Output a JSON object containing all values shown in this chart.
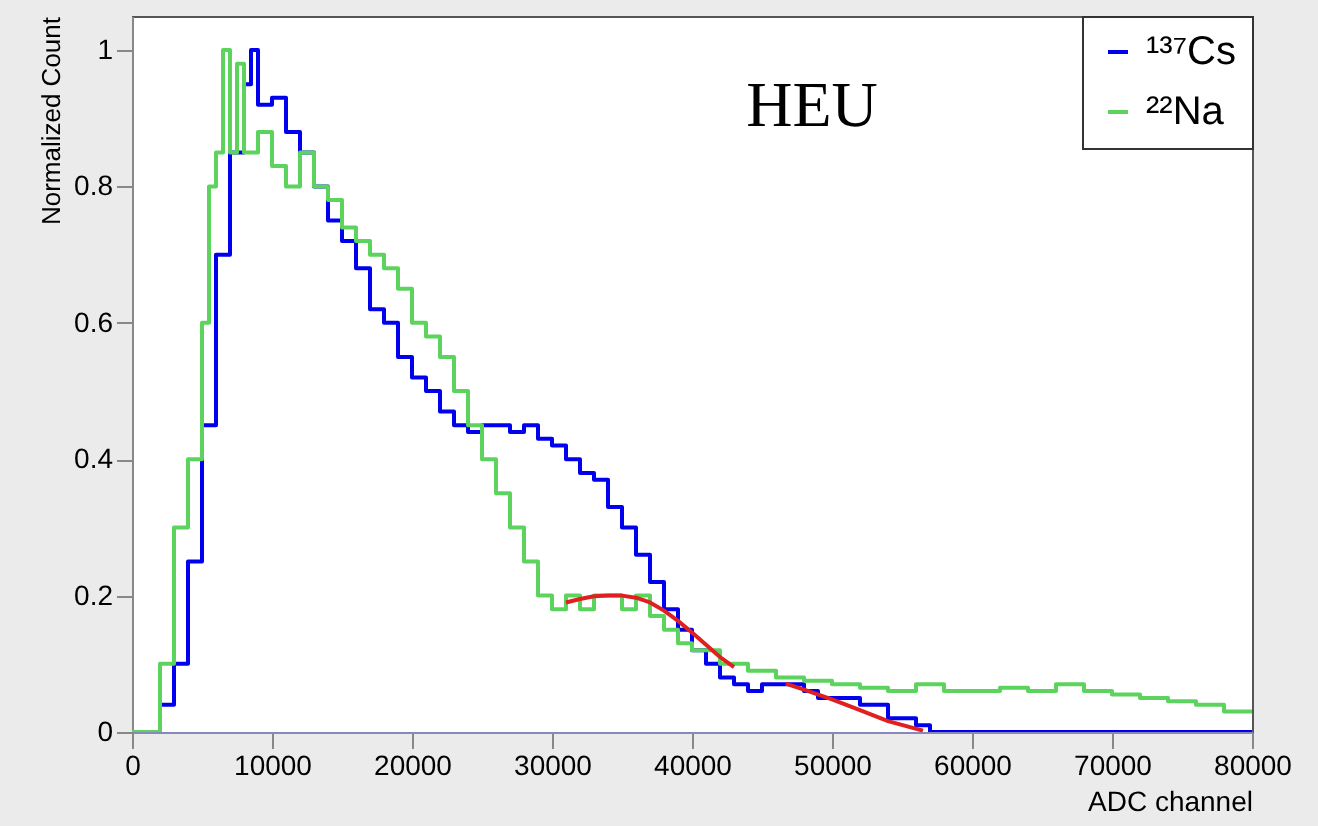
{
  "chart_data": {
    "type": "line",
    "xlabel": "ADC channel",
    "ylabel": "Normalized Count",
    "annotations": [
      "HEU"
    ],
    "xlim": [
      0,
      80000
    ],
    "ylim": [
      0,
      1.05
    ],
    "xticks": [
      0,
      10000,
      20000,
      30000,
      40000,
      50000,
      60000,
      70000,
      80000
    ],
    "yticks": [
      0,
      0.2,
      0.4,
      0.6,
      0.8,
      1
    ],
    "grid": false,
    "legend": "top right",
    "series": [
      {
        "name": "¹³⁷Cs",
        "type": "step",
        "color": "#0000ee",
        "x": [
          0,
          1000,
          2000,
          3000,
          4000,
          5000,
          6000,
          7000,
          8000,
          8500,
          9000,
          10000,
          11000,
          12000,
          13000,
          14000,
          15000,
          16000,
          17000,
          18000,
          19000,
          20000,
          21000,
          22000,
          23000,
          24000,
          25000,
          26000,
          27000,
          28000,
          29000,
          30000,
          31000,
          32000,
          33000,
          34000,
          35000,
          36000,
          37000,
          38000,
          39000,
          40000,
          41000,
          42000,
          43000,
          44000,
          45000,
          46000,
          47000,
          48000,
          49000,
          50000,
          52000,
          54000,
          56000,
          57000,
          60000,
          70000,
          80000
        ],
        "values": [
          0,
          0,
          0.04,
          0.1,
          0.25,
          0.45,
          0.7,
          0.85,
          0.95,
          1.0,
          0.92,
          0.93,
          0.88,
          0.85,
          0.8,
          0.75,
          0.72,
          0.68,
          0.62,
          0.6,
          0.55,
          0.52,
          0.5,
          0.47,
          0.45,
          0.44,
          0.45,
          0.45,
          0.44,
          0.45,
          0.43,
          0.42,
          0.4,
          0.38,
          0.37,
          0.33,
          0.3,
          0.26,
          0.22,
          0.18,
          0.15,
          0.12,
          0.1,
          0.08,
          0.07,
          0.06,
          0.07,
          0.07,
          0.07,
          0.06,
          0.05,
          0.05,
          0.04,
          0.02,
          0.01,
          0,
          0,
          0,
          0
        ]
      },
      {
        "name": "²²Na",
        "type": "step",
        "color": "#5cd35c",
        "x": [
          0,
          500,
          2000,
          3000,
          4000,
          5000,
          5500,
          6000,
          6500,
          7000,
          7500,
          8000,
          9000,
          10000,
          11000,
          12000,
          13000,
          14000,
          15000,
          16000,
          17000,
          18000,
          19000,
          20000,
          21000,
          22000,
          23000,
          24000,
          25000,
          26000,
          27000,
          28000,
          29000,
          30000,
          31000,
          32000,
          33000,
          34000,
          35000,
          36000,
          37000,
          38000,
          39000,
          40000,
          42000,
          44000,
          46000,
          48000,
          50000,
          52000,
          54000,
          56000,
          58000,
          60000,
          62000,
          64000,
          66000,
          68000,
          70000,
          72000,
          74000,
          76000,
          78000,
          80000
        ],
        "values": [
          0,
          0,
          0.1,
          0.3,
          0.4,
          0.6,
          0.8,
          0.85,
          1.0,
          0.85,
          0.98,
          0.85,
          0.88,
          0.83,
          0.8,
          0.85,
          0.8,
          0.78,
          0.74,
          0.72,
          0.7,
          0.68,
          0.65,
          0.6,
          0.58,
          0.55,
          0.5,
          0.45,
          0.4,
          0.35,
          0.3,
          0.25,
          0.2,
          0.18,
          0.2,
          0.18,
          0.2,
          0.2,
          0.18,
          0.2,
          0.17,
          0.15,
          0.13,
          0.12,
          0.1,
          0.09,
          0.08,
          0.075,
          0.07,
          0.065,
          0.06,
          0.07,
          0.06,
          0.06,
          0.065,
          0.06,
          0.07,
          0.06,
          0.055,
          0.05,
          0.045,
          0.04,
          0.03,
          0.03
        ]
      },
      {
        "type": "line",
        "color": "#e02020",
        "x": [
          31000,
          32000,
          33000,
          34000,
          35000,
          36000,
          37000,
          38000,
          39000,
          40000,
          41000,
          42000,
          43000
        ],
        "values": [
          0.19,
          0.195,
          0.199,
          0.2,
          0.2,
          0.197,
          0.19,
          0.178,
          0.163,
          0.146,
          0.128,
          0.11,
          0.095
        ]
      },
      {
        "type": "line",
        "color": "#e02020",
        "x": [
          46700,
          48000,
          50000,
          52000,
          54000,
          56500
        ],
        "values": [
          0.071,
          0.062,
          0.048,
          0.032,
          0.016,
          0.002
        ]
      }
    ]
  }
}
